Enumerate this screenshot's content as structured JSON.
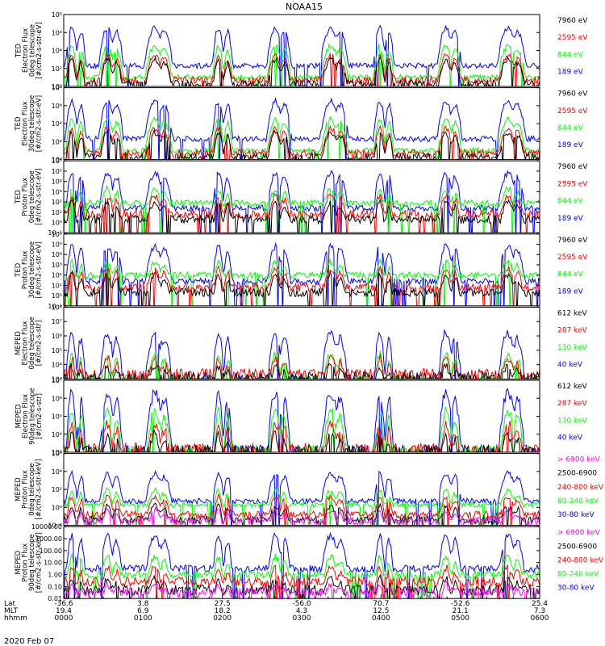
{
  "title": "NOAA15",
  "date_label": "2020 Feb 07",
  "x_axis": {
    "row_labels": [
      "Lat",
      "MLT",
      "hhmm"
    ],
    "ticks": [
      {
        "t": 0,
        "lat": "-36.6",
        "mlt": "19.4",
        "hhmm": "0000"
      },
      {
        "t": 60,
        "lat": "3.8",
        "mlt": "6.9",
        "hhmm": "0100"
      },
      {
        "t": 120,
        "lat": "27.5",
        "mlt": "18.2",
        "hhmm": "0200"
      },
      {
        "t": 180,
        "lat": "-56.0",
        "mlt": "4.3",
        "hhmm": "0300"
      },
      {
        "t": 240,
        "lat": "70.7",
        "mlt": "12.5",
        "hhmm": "0400"
      },
      {
        "t": 300,
        "lat": "-52.6",
        "mlt": "21.1",
        "hhmm": "0500"
      },
      {
        "t": 360,
        "lat": "25.4",
        "mlt": "7.3",
        "hhmm": "0600"
      }
    ]
  },
  "colors": {
    "blue": "#0000ff",
    "red": "#ff0000",
    "green": "#00ff00",
    "black": "#000000",
    "magenta": "#ff00ff"
  },
  "passes": [
    6,
    33,
    69,
    117,
    160,
    202,
    239,
    289,
    336
  ],
  "chart_data": [
    {
      "type": "line",
      "panel": "ted-electron-0deg",
      "ylabel": [
        "TED",
        "Electron Flux",
        "0deg telescope",
        "[#/cm2-s-str-eV]"
      ],
      "yticks": [
        "10⁰",
        "10²",
        "10⁴",
        "10⁶",
        "10⁸"
      ],
      "ylim_exp": [
        0,
        8
      ],
      "series": [
        {
          "name": "7960 eV",
          "color": "black",
          "base": 0.3,
          "peak": 3.0
        },
        {
          "name": "2595 eV",
          "color": "red",
          "base": 0.7,
          "peak": 3.5
        },
        {
          "name": "844 eV",
          "color": "green",
          "base": 1.0,
          "peak": 4.5
        },
        {
          "name": "189 eV",
          "color": "blue",
          "base": 2.3,
          "peak": 6.5
        }
      ]
    },
    {
      "type": "line",
      "panel": "ted-electron-30deg",
      "ylabel": [
        "TED",
        "Electron Flux",
        "30deg telescope",
        "[#/cm2-s-str-eV]"
      ],
      "yticks": [
        "10⁰",
        "10²",
        "10⁴",
        "10⁶",
        "10⁸"
      ],
      "ylim_exp": [
        0,
        8
      ],
      "series": [
        {
          "name": "7960 eV",
          "color": "black",
          "base": 0.3,
          "peak": 3.0
        },
        {
          "name": "2595 eV",
          "color": "red",
          "base": 0.7,
          "peak": 3.5
        },
        {
          "name": "844 eV",
          "color": "green",
          "base": 1.0,
          "peak": 4.5
        },
        {
          "name": "189 eV",
          "color": "blue",
          "base": 2.3,
          "peak": 6.5
        }
      ]
    },
    {
      "type": "line",
      "panel": "ted-proton-0deg",
      "ylabel": [
        "TED",
        "Proton Flux",
        "0deg telescope",
        "[#/cm2-s-str-eV]"
      ],
      "yticks": [
        "10⁻¹",
        "10⁰",
        "10¹",
        "10²",
        "10³",
        "10⁴",
        "10⁵",
        "10⁶"
      ],
      "ylim_exp": [
        -1,
        6
      ],
      "series": [
        {
          "name": "7960 eV",
          "color": "black",
          "base": 0.3,
          "peak": 2.0
        },
        {
          "name": "2595 eV",
          "color": "red",
          "base": 0.8,
          "peak": 2.6
        },
        {
          "name": "844 eV",
          "color": "green",
          "base": 1.9,
          "peak": 3.3
        },
        {
          "name": "189 eV",
          "color": "blue",
          "base": 1.4,
          "peak": 4.8
        }
      ]
    },
    {
      "type": "line",
      "panel": "ted-proton-30deg",
      "ylabel": [
        "TED",
        "Proton Flux",
        "30deg telescope",
        "[#/cm2-s-str-eV]"
      ],
      "yticks": [
        "10⁻¹",
        "10⁰",
        "10¹",
        "10²",
        "10³",
        "10⁴",
        "10⁵",
        "10⁶"
      ],
      "ylim_exp": [
        -1,
        6
      ],
      "series": [
        {
          "name": "7960 eV",
          "color": "black",
          "base": 0.3,
          "peak": 2.0
        },
        {
          "name": "2595 eV",
          "color": "red",
          "base": 0.8,
          "peak": 2.6
        },
        {
          "name": "844 eV",
          "color": "green",
          "base": 2.0,
          "peak": 3.3
        },
        {
          "name": "189 eV",
          "color": "blue",
          "base": 1.4,
          "peak": 4.8
        }
      ]
    },
    {
      "type": "line",
      "panel": "meped-electron-0deg",
      "ylabel": [
        "MEPED",
        "Electron Flux",
        "0deg telescope",
        "[#/cm2-s-str]"
      ],
      "yticks": [
        "10³",
        "10⁴",
        "10⁵",
        "10⁶",
        "10⁷",
        "10⁸"
      ],
      "ylim_exp": [
        3,
        8
      ],
      "series": [
        {
          "name": "612 keV",
          "color": "black",
          "base": 3.1,
          "peak": 3.9
        },
        {
          "name": "287 keV",
          "color": "red",
          "base": 3.3,
          "peak": 4.5
        },
        {
          "name": "130 keV",
          "color": "green",
          "base": 3.0,
          "peak": 4.7
        },
        {
          "name": "40 keV",
          "color": "blue",
          "base": 3.0,
          "peak": 6.2
        }
      ]
    },
    {
      "type": "line",
      "panel": "meped-electron-90deg",
      "ylabel": [
        "MEPED",
        "Electron Flux",
        "90deg telescope",
        "[#/cm2-s-str]"
      ],
      "yticks": [
        "10³",
        "10⁴",
        "10⁵",
        "10⁶",
        "10⁷"
      ],
      "ylim_exp": [
        3,
        7
      ],
      "series": [
        {
          "name": "612 keV",
          "color": "black",
          "base": 3.0,
          "peak": 4.0
        },
        {
          "name": "287 keV",
          "color": "red",
          "base": 3.1,
          "peak": 4.6
        },
        {
          "name": "130 keV",
          "color": "green",
          "base": 3.1,
          "peak": 5.3
        },
        {
          "name": "40 keV",
          "color": "blue",
          "base": 3.1,
          "peak": 6.3
        }
      ]
    },
    {
      "type": "line",
      "panel": "meped-proton-0deg",
      "ylabel": [
        "MEPED",
        "Proton Flux",
        "0deg telescope",
        "[#/cm2-s-str-keV]"
      ],
      "yticks": [
        "10⁻²",
        "10⁰",
        "10²",
        "10⁴",
        "10⁶"
      ],
      "ylim_exp": [
        -2,
        6
      ],
      "series": [
        {
          "name": "> 6900 keV",
          "color": "magenta",
          "base": -1.5,
          "peak": -0.3
        },
        {
          "name": "2500-6900",
          "color": "black",
          "base": -1.4,
          "peak": 0.2
        },
        {
          "name": "240-800 keV",
          "color": "red",
          "base": -0.8,
          "peak": 1.2
        },
        {
          "name": "80-240 keV",
          "color": "green",
          "base": 0.3,
          "peak": 1.9
        },
        {
          "name": "30-80 keV",
          "color": "blue",
          "base": 0.7,
          "peak": 3.8
        }
      ]
    },
    {
      "type": "line",
      "panel": "meped-proton-90deg",
      "ylabel": [
        "MEPED",
        "Proton Flux",
        "90deg telescope",
        "[#/cm2-s-str-keV]"
      ],
      "yticks": [
        "0.01",
        "0.10",
        "1.00",
        "10.00",
        "100.00",
        "1000.00",
        "10000.00"
      ],
      "ylim_exp": [
        -2,
        4
      ],
      "series": [
        {
          "name": "> 6900 keV",
          "color": "magenta",
          "base": -1.5,
          "peak": -0.8
        },
        {
          "name": "2500-6900",
          "color": "black",
          "base": -1.3,
          "peak": -0.3
        },
        {
          "name": "240-800 keV",
          "color": "red",
          "base": -0.6,
          "peak": 0.6
        },
        {
          "name": "80-240 keV",
          "color": "green",
          "base": 0.0,
          "peak": 1.5
        },
        {
          "name": "30-80 keV",
          "color": "blue",
          "base": 0.5,
          "peak": 3.2
        }
      ]
    }
  ]
}
